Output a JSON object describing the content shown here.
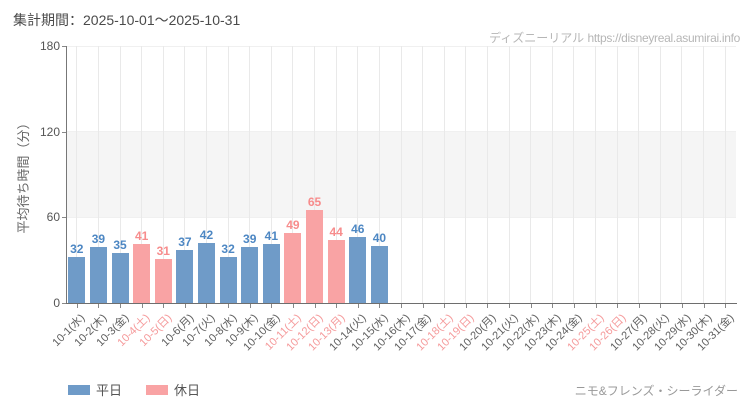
{
  "header": {
    "title": "集計期間：2025-10-01～2025-10-31",
    "watermark_brand": "ディズニーリアル",
    "watermark_url": "https://disneyreal.asumirai.info"
  },
  "footer": {
    "attraction": "ニモ&フレンズ・シーライダー"
  },
  "legend": {
    "weekday_label": "平日",
    "holiday_label": "休日"
  },
  "colors": {
    "weekday_bar": "#6f9bc8",
    "holiday_bar": "#f9a3a4",
    "weekday_value": "#4d87c3",
    "holiday_value": "#f78c8c",
    "weekday_axis_label": "#606060",
    "holiday_axis_label": "#f59a9b"
  },
  "chart_data": {
    "type": "bar",
    "title": "集計期間：2025-10-01～2025-10-31",
    "xlabel": "",
    "ylabel": "平均待ち時間（分）",
    "ylim": [
      0,
      180
    ],
    "yticks": [
      0,
      60,
      120,
      180
    ],
    "shaded_band": [
      60,
      120
    ],
    "grid": "vertical-at-category-centers",
    "legend_position": "bottom-left",
    "categories": [
      "10-1(水)",
      "10-2(木)",
      "10-3(金)",
      "10-4(土)",
      "10-5(日)",
      "10-6(月)",
      "10-7(火)",
      "10-8(水)",
      "10-9(木)",
      "10-10(金)",
      "10-11(土)",
      "10-12(日)",
      "10-13(月)",
      "10-14(火)",
      "10-15(水)",
      "10-16(木)",
      "10-17(金)",
      "10-18(土)",
      "10-19(日)",
      "10-20(月)",
      "10-21(火)",
      "10-22(水)",
      "10-23(木)",
      "10-24(金)",
      "10-25(土)",
      "10-26(日)",
      "10-27(月)",
      "10-28(火)",
      "10-29(水)",
      "10-30(木)",
      "10-31(金)"
    ],
    "values": [
      32,
      39,
      35,
      41,
      31,
      37,
      42,
      32,
      39,
      41,
      49,
      65,
      44,
      46,
      40,
      null,
      null,
      null,
      null,
      null,
      null,
      null,
      null,
      null,
      null,
      null,
      null,
      null,
      null,
      null,
      null
    ],
    "day_types": [
      "weekday",
      "weekday",
      "weekday",
      "holiday",
      "holiday",
      "weekday",
      "weekday",
      "weekday",
      "weekday",
      "weekday",
      "holiday",
      "holiday",
      "holiday",
      "weekday",
      "weekday",
      "weekday",
      "weekday",
      "holiday",
      "holiday",
      "weekday",
      "weekday",
      "weekday",
      "weekday",
      "weekday",
      "holiday",
      "holiday",
      "weekday",
      "weekday",
      "weekday",
      "weekday",
      "weekday"
    ],
    "series": [
      {
        "name": "平日",
        "color": "#6f9bc8"
      },
      {
        "name": "休日",
        "color": "#f9a3a4"
      }
    ]
  }
}
